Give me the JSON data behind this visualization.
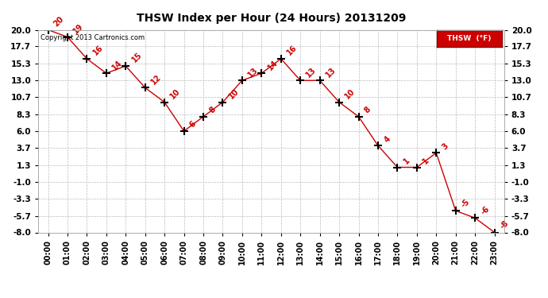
{
  "title": "THSW Index per Hour (24 Hours) 20131209",
  "copyright": "Copyright 2013 Cartronics.com",
  "legend_label": "THSW  (°F)",
  "hours": [
    "00:00",
    "01:00",
    "02:00",
    "03:00",
    "04:00",
    "05:00",
    "06:00",
    "07:00",
    "08:00",
    "09:00",
    "10:00",
    "11:00",
    "12:00",
    "13:00",
    "14:00",
    "15:00",
    "16:00",
    "17:00",
    "18:00",
    "19:00",
    "20:00",
    "21:00",
    "22:00",
    "23:00"
  ],
  "y": [
    20,
    19,
    16,
    14,
    15,
    12,
    10,
    6,
    8,
    10,
    13,
    14,
    16,
    13,
    13,
    10,
    8,
    4,
    1,
    1,
    3,
    -5,
    -6,
    -8
  ],
  "annotations": [
    "20",
    "19",
    "16",
    "14",
    "15",
    "12",
    "10",
    "6",
    "8",
    "10",
    "13",
    "14",
    "16",
    "13",
    "13",
    "10",
    "8",
    "4",
    "1",
    "1",
    "3",
    "-5",
    "-6",
    "-8"
  ],
  "yticks": [
    20.0,
    17.7,
    15.3,
    13.0,
    10.7,
    8.3,
    6.0,
    3.7,
    1.3,
    -1.0,
    -3.3,
    -5.7,
    -8.0
  ],
  "ylim": [
    -8.0,
    20.0
  ],
  "line_color": "#cc0000",
  "marker_color": "#000000",
  "bg_color": "#ffffff",
  "grid_color": "#bbbbbb",
  "annotation_color": "#cc0000",
  "legend_bg": "#cc0000",
  "legend_text_color": "#ffffff"
}
